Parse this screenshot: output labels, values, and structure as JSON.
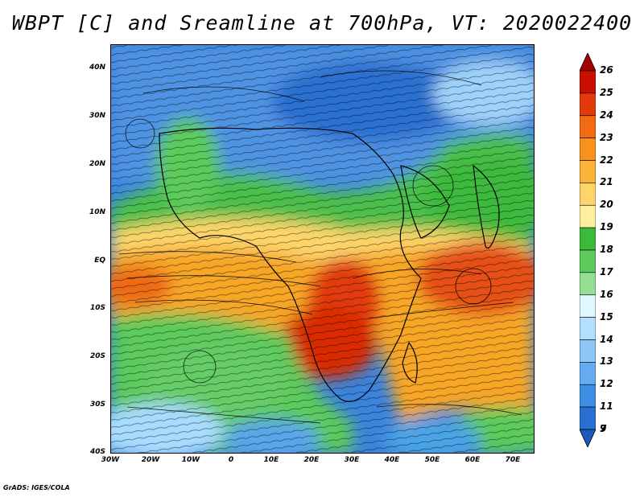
{
  "title": "WBPT [C] and Sreamline at 700hPa, VT: 2020022400",
  "credit": "GrADS: IGES/COLA",
  "lat_labels": [
    "40N",
    "30N",
    "20N",
    "10N",
    "EQ",
    "10S",
    "20S",
    "30S",
    "40S"
  ],
  "lon_labels": [
    "30W",
    "20W",
    "10W",
    "0",
    "10E",
    "20E",
    "30E",
    "40E",
    "50E",
    "60E",
    "70E"
  ],
  "colorbar": {
    "levels": [
      "26",
      "25",
      "24",
      "23",
      "22",
      "21",
      "20",
      "19",
      "18",
      "17",
      "16",
      "15",
      "14",
      "13",
      "12",
      "11",
      "9",
      "7"
    ],
    "colors": [
      "#a50000",
      "#c81000",
      "#e23a0a",
      "#f26a12",
      "#f7921c",
      "#fbb436",
      "#fdd56a",
      "#fff0a0",
      "#3cba3c",
      "#5ccb5c",
      "#96e096",
      "#dff7ff",
      "#b4e0ff",
      "#8ec8f5",
      "#64acef",
      "#3c8ee4",
      "#2a70d2",
      "#1c5ac0"
    ]
  }
}
